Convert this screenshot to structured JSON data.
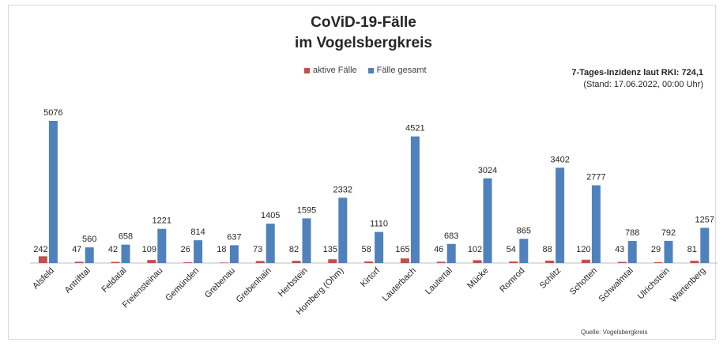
{
  "chart_data": {
    "type": "bar",
    "title": "CoViD-19-Fälle",
    "subtitle": "im Vogelsbergkreis",
    "categories": [
      "Alsfeld",
      "Antrifttal",
      "Feldatal",
      "Freiensteinau",
      "Gemünden",
      "Grebenau",
      "Grebenhain",
      "Herbstein",
      "Homberg (Ohm)",
      "Kirtorf",
      "Lauterbach",
      "Lautertal",
      "Mücke",
      "Romrod",
      "Schlitz",
      "Schotten",
      "Schwalmtal",
      "Ulrichstein",
      "Wartenberg"
    ],
    "series": [
      {
        "name": "aktive Fälle",
        "color": "#c0504d",
        "values": [
          242,
          47,
          42,
          109,
          26,
          18,
          73,
          82,
          135,
          58,
          165,
          46,
          102,
          54,
          88,
          120,
          43,
          29,
          81
        ]
      },
      {
        "name": "Fälle gesamt",
        "color": "#4f81bd",
        "values": [
          5076,
          560,
          658,
          1221,
          814,
          637,
          1405,
          1595,
          2332,
          1110,
          4521,
          683,
          3024,
          865,
          3402,
          2777,
          788,
          792,
          1257
        ]
      }
    ],
    "ylim": [
      0,
      5076
    ],
    "legend": "top-center",
    "grid": false,
    "data_labels": true
  },
  "info": {
    "incidence": "7-Tages-Inzidenz laut RKI: 724,1",
    "stand": "(Stand: 17.06.2022, 00:00 Uhr)"
  },
  "source": "Quelle: Vogelsbergkreis"
}
